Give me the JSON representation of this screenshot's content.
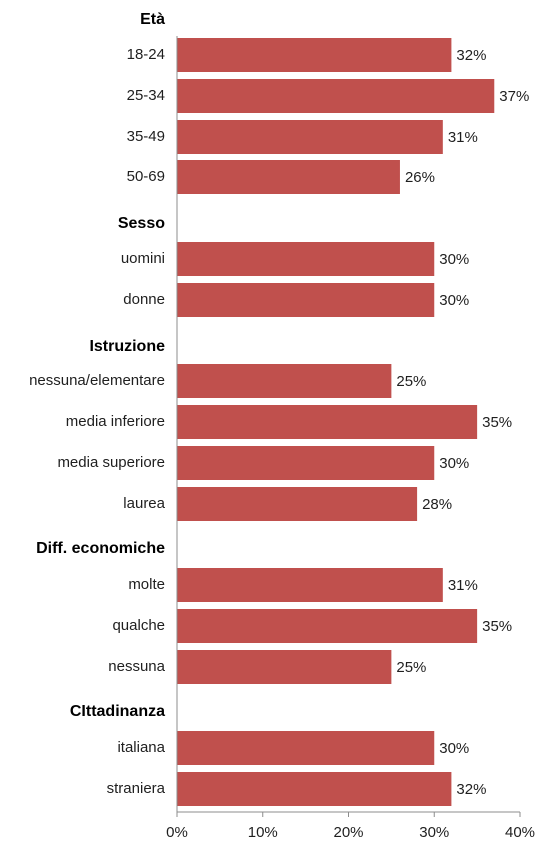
{
  "chart_data": {
    "type": "bar",
    "orientation": "horizontal",
    "color": "#c0504d",
    "xlim": [
      0,
      40
    ],
    "xticks": [
      "0%",
      "10%",
      "20%",
      "30%",
      "40%"
    ],
    "grid": false,
    "groups": [
      {
        "title": "Età",
        "categories": [
          "18-24",
          "25-34",
          "35-49",
          "50-69"
        ],
        "values": [
          32,
          37,
          31,
          26
        ],
        "labels": [
          "32%",
          "37%",
          "31%",
          "26%"
        ]
      },
      {
        "title": "Sesso",
        "categories": [
          "uomini",
          "donne"
        ],
        "values": [
          30,
          30
        ],
        "labels": [
          "30%",
          "30%"
        ]
      },
      {
        "title": "Istruzione",
        "categories": [
          "nessuna/elementare",
          "media inferiore",
          "media superiore",
          "laurea"
        ],
        "values": [
          25,
          35,
          30,
          28
        ],
        "labels": [
          "25%",
          "35%",
          "30%",
          "28%"
        ]
      },
      {
        "title": "Diff. economiche",
        "categories": [
          "molte",
          "qualche",
          "nessuna"
        ],
        "values": [
          31,
          35,
          25
        ],
        "labels": [
          "31%",
          "35%",
          "25%"
        ]
      },
      {
        "title": "CIttadinanza",
        "categories": [
          "italiana",
          "straniera"
        ],
        "values": [
          30,
          32
        ],
        "labels": [
          "30%",
          "32%"
        ]
      }
    ]
  }
}
